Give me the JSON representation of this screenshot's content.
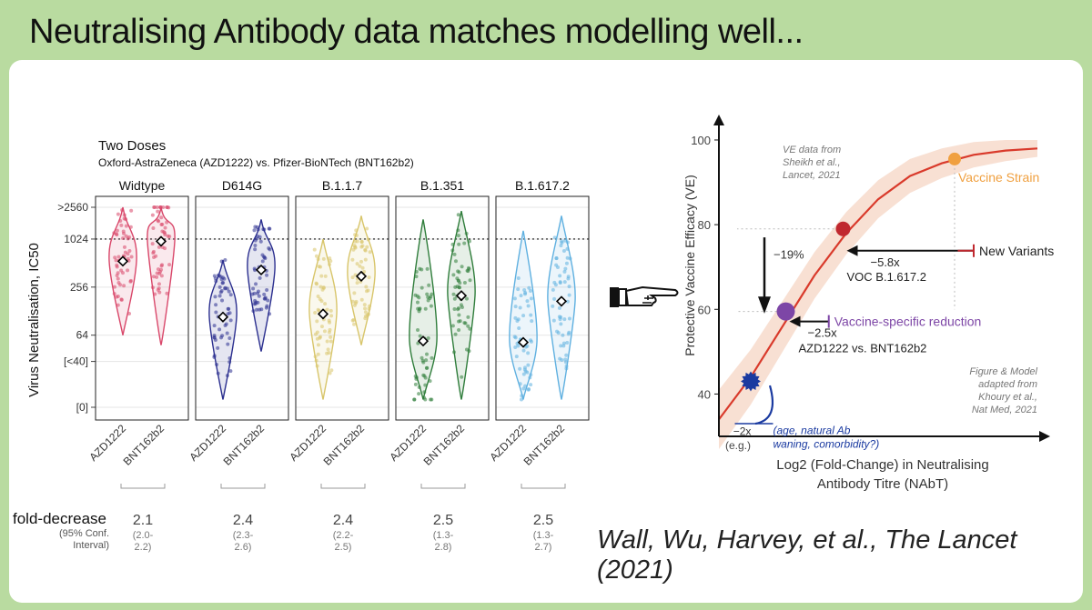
{
  "slide": {
    "title": "Neutralising Antibody data matches modelling well...",
    "citation": "Wall, Wu, Harvey, et al., The Lancet (2021)"
  },
  "colors": {
    "background": "#b9dba0",
    "wildtype": "#d9476a",
    "d614g": "#2b2f8f",
    "b117": "#d8c56a",
    "b1351": "#2f7d3b",
    "b16172": "#5fb0e0",
    "curve": "#d93a2b",
    "band": "#f6d8c8",
    "vaccine_strain": "#f0a040",
    "new_variants": "#c0282f",
    "vaccine_specific": "#7d46a6",
    "azd_point": "#1a3aa0"
  },
  "pointer": {
    "icon": "pointing-hand-icon"
  },
  "chart_data": [
    {
      "type": "violin",
      "title": "Two Doses",
      "subtitle": "Oxford-AstraZeneca (AZD1222) vs. Pfizer-BioNTech (BNT162b2)",
      "ylabel": "Virus Neutralisation, IC50",
      "yscale": "log2",
      "yticks": [
        "[0]",
        "[<40]",
        "64",
        "256",
        "1024",
        ">2560"
      ],
      "reference_line": 1024,
      "grid": true,
      "panels": [
        {
          "name": "Widtype",
          "color": "#d9476a",
          "groups": [
            {
              "label": "AZD1222",
              "median": 540,
              "min": 64,
              "max": 2560
            },
            {
              "label": "BNT162b2",
              "median": 960,
              "min": 48,
              "max": 2560
            }
          ],
          "fold_decrease": "2.1",
          "ci": "(2.0-\n2.2)"
        },
        {
          "name": "D614G",
          "color": "#2b2f8f",
          "groups": [
            {
              "label": "AZD1222",
              "median": 108,
              "min": 10,
              "max": 560
            },
            {
              "label": "BNT162b2",
              "median": 420,
              "min": 40,
              "max": 1800
            }
          ],
          "fold_decrease": "2.4",
          "ci": "(2.3-\n2.6)"
        },
        {
          "name": "B.1.1.7",
          "color": "#d8c56a",
          "groups": [
            {
              "label": "AZD1222",
              "median": 118,
              "min": 10,
              "max": 1024
            },
            {
              "label": "BNT162b2",
              "median": 350,
              "min": 48,
              "max": 2000
            }
          ],
          "fold_decrease": "2.4",
          "ci": "(2.2-\n2.5)"
        },
        {
          "name": "B.1.351",
          "color": "#2f7d3b",
          "groups": [
            {
              "label": "AZD1222",
              "median": 54,
              "min": 10,
              "max": 1800
            },
            {
              "label": "BNT162b2",
              "median": 200,
              "min": 10,
              "max": 2300
            }
          ],
          "fold_decrease": "2.5",
          "ci": "(1.3-\n2.8)"
        },
        {
          "name": "B.1.617.2",
          "color": "#5fb0e0",
          "groups": [
            {
              "label": "AZD1222",
              "median": 52,
              "min": 10,
              "max": 1300
            },
            {
              "label": "BNT162b2",
              "median": 170,
              "min": 10,
              "max": 2000
            }
          ],
          "fold_decrease": "2.5",
          "ci": "(1.3-\n2.7)"
        }
      ],
      "bottom_labels": {
        "fold_decrease": "fold-decrease",
        "ci_label": "(95% Conf.\nInterval)"
      }
    },
    {
      "type": "line",
      "xlabel": "Log2 (Fold-Change) in Neutralising\nAntibody Titre (NAbT)",
      "ylabel": "Protective Vaccine Efficacy (VE)",
      "yticks": [
        40,
        60,
        80,
        100
      ],
      "ylim": [
        30,
        103
      ],
      "xlim": [
        0,
        10
      ],
      "curve": [
        [
          0.0,
          34
        ],
        [
          1.0,
          44
        ],
        [
          2.0,
          56
        ],
        [
          3.0,
          68
        ],
        [
          4.0,
          78
        ],
        [
          5.0,
          86
        ],
        [
          6.0,
          91.5
        ],
        [
          7.0,
          94.5
        ],
        [
          8.0,
          96.5
        ],
        [
          9.0,
          97.5
        ],
        [
          10.0,
          98
        ]
      ],
      "points": [
        {
          "name": "Vaccine Strain",
          "x": 7.4,
          "y": 95.5,
          "color": "#f0a040"
        },
        {
          "name": "New Variants",
          "x": 3.9,
          "y": 79,
          "color": "#c0282f"
        },
        {
          "name": "Vaccine-specific reduction",
          "x": 2.1,
          "y": 59.5,
          "color": "#7d46a6"
        },
        {
          "name": "AZD1222",
          "x": 1.0,
          "y": 43,
          "color": "#1a3aa0"
        }
      ],
      "annotations": {
        "ve_source": "VE data from\nSheikh et al.,\nLancet, 2021",
        "model_source": "Figure & Model\nadapted from\nKhoury et al.,\nNat Med, 2021",
        "vaccine_strain": "Vaccine Strain",
        "new_variants": "New Variants",
        "fold_58": "−5.8x",
        "voc": "VOC B.1.617.2",
        "drop": "−19%",
        "vaccine_specific": "Vaccine-specific reduction",
        "fold_25": "−2.5x",
        "azd_vs_bnt": "AZD1222 vs. BNT162b2",
        "fold_2": "−2x",
        "eg": "(e.g.)",
        "factors": "(age, natural Ab\nwaning, comorbidity?)"
      }
    }
  ]
}
